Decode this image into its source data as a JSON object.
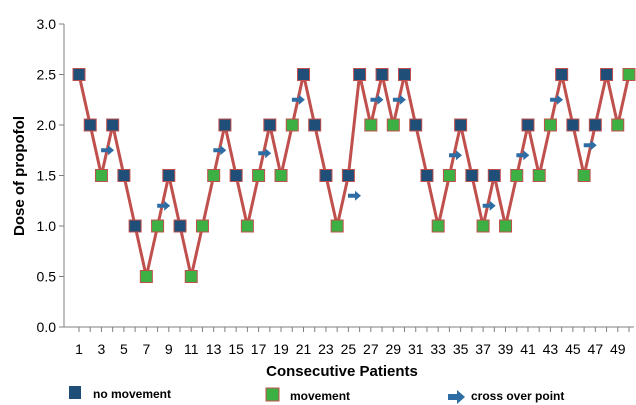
{
  "chart_data": {
    "type": "line",
    "xlabel": "Consecutive Patients",
    "ylabel": "Dose of propofol",
    "ylim": [
      0,
      3
    ],
    "xlim": [
      1,
      50
    ],
    "yticks": [
      "0.0",
      "0.5",
      "1.0",
      "1.5",
      "2.0",
      "2.5",
      "3.0"
    ],
    "xticks": [
      "1",
      "3",
      "5",
      "7",
      "9",
      "11",
      "13",
      "15",
      "17",
      "19",
      "21",
      "23",
      "25",
      "27",
      "29",
      "31",
      "33",
      "35",
      "37",
      "39",
      "41",
      "43",
      "45",
      "47",
      "49"
    ],
    "grid": false,
    "legend_placement": "bottom",
    "colors": {
      "line": "#c0504d",
      "no_movement_fill": "#1f4e79",
      "movement_fill": "#3cb043",
      "marker_edge": "#c0504d",
      "arrow": "#2e6da4",
      "axis": "#7f7f7f"
    },
    "series": [
      {
        "x": [
          1,
          2,
          3,
          4,
          5,
          6,
          7,
          8,
          9,
          10,
          11,
          12,
          13,
          14,
          15,
          16,
          17,
          18,
          19,
          20,
          21,
          22,
          23,
          24,
          25,
          26,
          27,
          28,
          29,
          30,
          31,
          32,
          33,
          34,
          35,
          36,
          37,
          38,
          39,
          40,
          41,
          42,
          43,
          44,
          45,
          46,
          47,
          48,
          49,
          50
        ],
        "y": [
          2.5,
          2.0,
          1.5,
          2.0,
          1.5,
          1.0,
          0.5,
          1.0,
          1.5,
          1.0,
          0.5,
          1.0,
          1.5,
          2.0,
          1.5,
          1.0,
          1.5,
          2.0,
          1.5,
          2.0,
          2.5,
          2.0,
          1.5,
          1.0,
          1.5,
          2.5,
          2.0,
          2.5,
          2.0,
          2.5,
          2.0,
          1.5,
          1.0,
          1.5,
          2.0,
          1.5,
          1.0,
          1.5,
          1.0,
          1.5,
          2.0,
          1.5,
          2.0,
          2.5,
          2.0,
          1.5,
          2.0,
          2.5,
          2.0,
          2.5
        ],
        "response": [
          "N",
          "N",
          "M",
          "N",
          "N",
          "N",
          "M",
          "M",
          "N",
          "N",
          "M",
          "M",
          "M",
          "N",
          "N",
          "M",
          "M",
          "N",
          "M",
          "M",
          "N",
          "N",
          "N",
          "M",
          "N",
          "N",
          "M",
          "N",
          "M",
          "N",
          "N",
          "N",
          "M",
          "M",
          "N",
          "N",
          "M",
          "N",
          "M",
          "M",
          "N",
          "M",
          "M",
          "N",
          "N",
          "M",
          "N",
          "N",
          "M",
          "M"
        ]
      }
    ],
    "crossover_points": [
      {
        "x": 3.5,
        "y": 1.75
      },
      {
        "x": 8.5,
        "y": 1.2
      },
      {
        "x": 13.5,
        "y": 1.75
      },
      {
        "x": 17.5,
        "y": 1.72
      },
      {
        "x": 20.5,
        "y": 2.25
      },
      {
        "x": 25.5,
        "y": 1.3
      },
      {
        "x": 27.5,
        "y": 2.25
      },
      {
        "x": 29.5,
        "y": 2.25
      },
      {
        "x": 34.5,
        "y": 1.7
      },
      {
        "x": 37.5,
        "y": 1.2
      },
      {
        "x": 40.5,
        "y": 1.7
      },
      {
        "x": 43.5,
        "y": 2.25
      },
      {
        "x": 46.5,
        "y": 1.8
      }
    ],
    "legend": {
      "no_movement": "no movement",
      "movement": "movement",
      "crossover": "cross over point"
    }
  }
}
